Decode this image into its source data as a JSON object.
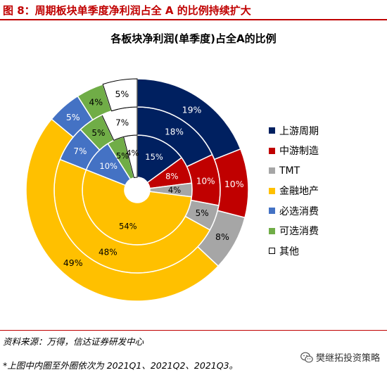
{
  "figure_title": "图 8：周期板块单季度净利润占全 A 的比例持续扩大",
  "source_note": "资料来源：万得，信达证券研发中心",
  "footnote": "*上图中内圈至外圈依次为 2021Q1、2021Q2、2021Q3。",
  "watermark": {
    "text": "樊继拓投资策略",
    "icon": "wechat-icon"
  },
  "chart_data": {
    "type": "donut",
    "title": "各板块净利润(单季度)占全A的比例",
    "categories": [
      "上游周期",
      "中游制造",
      "TMT",
      "金融地产",
      "必选消费",
      "可选消费",
      "其他"
    ],
    "colors": [
      "#002060",
      "#C00000",
      "#A6A6A6",
      "#FFC000",
      "#4472C4",
      "#70AD47",
      "#FFFFFF"
    ],
    "legend_position": "right",
    "series": [
      {
        "name": "2021Q1",
        "values": [
          15,
          8,
          4,
          54,
          10,
          5,
          4
        ],
        "labels": [
          "15%",
          "8%",
          "4%",
          "54%",
          "10%",
          "5%",
          "4%"
        ]
      },
      {
        "name": "2021Q2",
        "values": [
          18,
          10,
          5,
          48,
          7,
          5,
          7
        ],
        "labels": [
          "18%",
          "10%",
          "5%",
          "48%",
          "7%",
          "5%",
          "7%"
        ]
      },
      {
        "name": "2021Q3",
        "values": [
          19,
          10,
          8,
          49,
          5,
          4,
          5
        ],
        "labels": [
          "19%",
          "10%",
          "8%",
          "49%",
          "5%",
          "4%",
          "5%"
        ]
      }
    ]
  }
}
